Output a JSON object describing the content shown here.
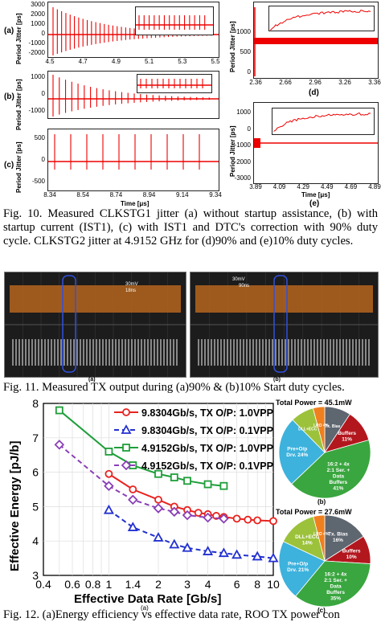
{
  "fig10": {
    "panels": {
      "a": {
        "label": "(a)",
        "ylabel": "Period Jitter [ps]",
        "yticks": [
          "3000",
          "2000",
          "1000",
          "0",
          "-1000",
          "-2000"
        ],
        "xticks": [
          "4.5",
          "4.7",
          "4.9",
          "5.1",
          "5.3",
          "5.5"
        ],
        "inset_yticks": [
          "100",
          "0",
          "-100"
        ],
        "inset_xticks": [
          "5",
          "5.1",
          "5.2",
          "5.3",
          "5.4"
        ]
      },
      "b": {
        "label": "(b)",
        "ylabel": "Period Jitter [ps]",
        "yticks": [
          "1000",
          "0",
          "-1000"
        ],
        "inset_yticks": [
          "100",
          "0",
          "-100"
        ]
      },
      "c": {
        "label": "(c)",
        "ylabel": "Period Jitter [ps]",
        "yticks": [
          "500",
          "0",
          "-500"
        ],
        "xticks": [
          "8.34",
          "8.54",
          "8.74",
          "8.94",
          "9.14",
          "9.34"
        ],
        "xlabel": "Time [μs]"
      },
      "d": {
        "label": "(d)",
        "ylabel": "Period Jitter [ps]",
        "yticks": [
          "1000",
          "500",
          "0"
        ],
        "xticks": [
          "2.36",
          "2.66",
          "2.96",
          "3.26",
          "3.36"
        ],
        "xlabel": "Time [μs]",
        "inset_yticks": [
          "0",
          "-20",
          "-40",
          "-60"
        ],
        "inset_xticks": [
          "2.368",
          "2.376",
          "2.386",
          "2.396"
        ]
      },
      "e": {
        "label": "(e)",
        "ylabel": "Period Jitter [ps]",
        "yticks": [
          "1000",
          "0",
          "-1000",
          "-2000",
          "-3000"
        ],
        "xticks": [
          "3.89",
          "4.09",
          "4.29",
          "4.49",
          "4.69",
          "4.89"
        ],
        "xlabel": "Time [μs]",
        "inset_yticks": [
          "30",
          "0",
          "-30",
          "-60",
          "-90"
        ],
        "inset_xticks": [
          "3.995",
          "3.915",
          "3.935"
        ]
      }
    },
    "caption": "Fig. 10.  Measured CLKSTG1 jitter (a) without startup assistance, (b) with startup current (IST1), (c) with IST1 and DTC's correction with 90% duty cycle. CLKSTG2 jitter at 4.9152 GHz for (d)90% and (e)10% duty cycles."
  },
  "fig11": {
    "panel_a": {
      "label": "(a)",
      "annotation": [
        "30mV",
        "18ns"
      ]
    },
    "panel_b": {
      "label": "(b)",
      "annotation": [
        "30mV",
        "90ns"
      ]
    },
    "caption": "Fig. 11.  Measured TX output during (a)90% & (b)10% Start duty cycles."
  },
  "fig12": {
    "panel_a_label": "(a)",
    "panel_b_label": "(b)",
    "panel_c_label": "(c)",
    "caption": "Fig. 12.  (a)Energy efficiency vs effective data rate, ROO TX power con"
  },
  "chart_data": {
    "type": "line",
    "xlabel": "Effective Data Rate [Gb/s]",
    "ylabel": "Effective Energy [pJ/b]",
    "xscale": "log",
    "xlim": [
      0.4,
      10
    ],
    "ylim": [
      3,
      8
    ],
    "xticks": [
      "0.4",
      "0.6",
      "0.8",
      "1",
      "1.4",
      "2",
      "3",
      "4",
      "6",
      "8",
      "10"
    ],
    "yticks": [
      "3",
      "4",
      "5",
      "6",
      "7",
      "8"
    ],
    "grid": true,
    "legend_position": "top-right",
    "series": [
      {
        "name": "9.8304Gb/s, TX O/P: 1.0VPP",
        "color": "#e8231f",
        "marker": "circle",
        "dashed": false,
        "x": [
          1,
          1.4,
          2,
          2.5,
          3,
          3.5,
          4,
          4.5,
          5,
          6,
          7,
          8,
          10
        ],
        "y": [
          5.95,
          5.5,
          5.2,
          5.0,
          4.9,
          4.82,
          4.78,
          4.73,
          4.7,
          4.65,
          4.62,
          4.6,
          4.58
        ]
      },
      {
        "name": "9.8304Gb/s, TX O/P: 0.1VPP",
        "color": "#2230d0",
        "marker": "triangle",
        "dashed": true,
        "x": [
          1,
          1.4,
          2,
          2.5,
          3,
          4,
          5,
          6,
          8,
          10
        ],
        "y": [
          4.9,
          4.4,
          4.1,
          3.9,
          3.8,
          3.7,
          3.65,
          3.6,
          3.55,
          3.5
        ]
      },
      {
        "name": "4.9152Gb/s, TX O/P: 1.0VPP",
        "color": "#1f9e3a",
        "marker": "square",
        "dashed": false,
        "x": [
          0.5,
          1,
          1.4,
          2,
          2.5,
          3,
          4,
          5
        ],
        "y": [
          7.8,
          6.6,
          6.2,
          5.95,
          5.85,
          5.75,
          5.65,
          5.6
        ]
      },
      {
        "name": "4.9152Gb/s, TX O/P: 0.1VPP",
        "color": "#8a3fb6",
        "marker": "diamond",
        "dashed": true,
        "x": [
          0.5,
          1,
          1.4,
          2,
          2.5,
          3,
          4,
          5
        ],
        "y": [
          6.8,
          5.6,
          5.2,
          4.95,
          4.85,
          4.75,
          4.68,
          4.65
        ]
      }
    ]
  },
  "pie_b": {
    "title": "Total Power = 45.1mW",
    "slices": [
      {
        "label": "Tx. Bias",
        "pct": "",
        "value": 9,
        "color": "#5e6670"
      },
      {
        "label": "Buffers",
        "pct": "11%",
        "value": 11,
        "color": "#b3171e"
      },
      {
        "label": "16:2 + 4x 2:1 Ser. + Data Buffers",
        "pct": "41%",
        "value": 41,
        "color": "#3aa63f"
      },
      {
        "label": "Pre+O/p Drv.",
        "pct": "24%",
        "value": 24,
        "color": "#3db2dd"
      },
      {
        "label": "DLL+ECC",
        "pct": "8%",
        "value": 8,
        "color": "#9cc23b"
      },
      {
        "label": "LRO",
        "pct": "4%",
        "value": 4,
        "color": "#f07f1d"
      }
    ]
  },
  "pie_c": {
    "title": "Total Power = 27.6mW",
    "slices": [
      {
        "label": "Tx. Bias",
        "pct": "16%",
        "value": 16,
        "color": "#5e6670"
      },
      {
        "label": "Buffers",
        "pct": "10%",
        "value": 10,
        "color": "#b3171e"
      },
      {
        "label": "16:2 + 4x 2:1 Ser. + Data Buffers",
        "pct": "35%",
        "value": 35,
        "color": "#3aa63f"
      },
      {
        "label": "Pre+O/p Drv.",
        "pct": "21%",
        "value": 21,
        "color": "#3db2dd"
      },
      {
        "label": "DLL+ECC",
        "pct": "14%",
        "value": 14,
        "color": "#9cc23b"
      },
      {
        "label": "LRO",
        "pct": "4%",
        "value": 4,
        "color": "#f07f1d"
      }
    ]
  }
}
